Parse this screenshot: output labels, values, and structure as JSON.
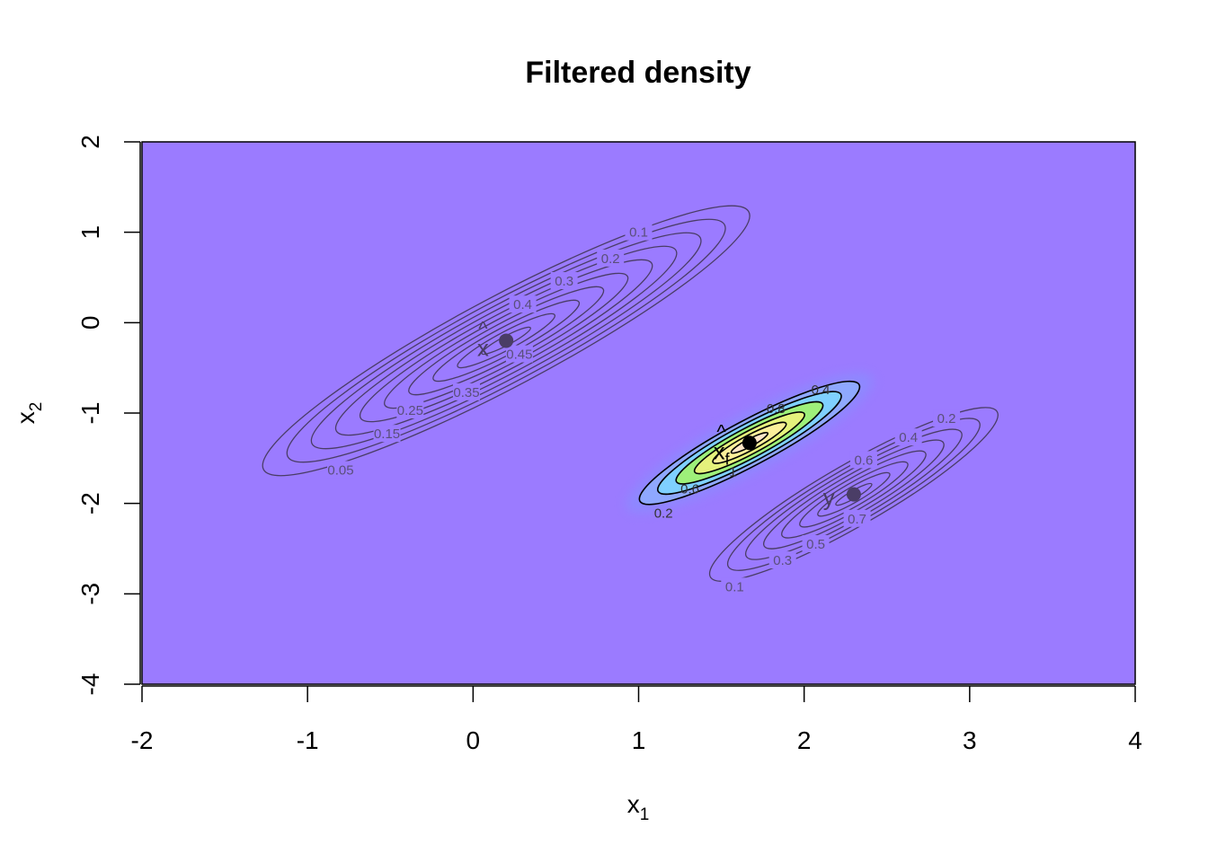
{
  "chart_data": {
    "type": "contour",
    "title": "Filtered density",
    "xlabel_base": "x",
    "xlabel_sub": "1",
    "ylabel_base": "x",
    "ylabel_sub": "2",
    "xlim": [
      -2,
      4
    ],
    "ylim": [
      -4,
      2
    ],
    "xticks": [
      "-2",
      "-1",
      "0",
      "1",
      "2",
      "3",
      "4"
    ],
    "yticks": [
      "-4",
      "-3",
      "-2",
      "-1",
      "0",
      "1",
      "2"
    ],
    "background_color": "#9b7bff",
    "densities": [
      {
        "name": "prior",
        "center": [
          0.2,
          -0.2
        ],
        "semi_axes": [
          1.66,
          0.5
        ],
        "angle_deg": 28,
        "line_color": "#4a3d66",
        "levels": [
          "0.05",
          "0.1",
          "0.15",
          "0.2",
          "0.25",
          "0.3",
          "0.35",
          "0.4",
          "0.45",
          "0.5"
        ],
        "labels": [
          {
            "text": "0.1",
            "x": 1.0,
            "y": 1.0
          },
          {
            "text": "0.2",
            "x": 0.83,
            "y": 0.71
          },
          {
            "text": "0.3",
            "x": 0.55,
            "y": 0.46
          },
          {
            "text": "0.4",
            "x": 0.3,
            "y": 0.2
          },
          {
            "text": "0.45",
            "x": 0.28,
            "y": -0.35
          },
          {
            "text": "0.35",
            "x": -0.04,
            "y": -0.77
          },
          {
            "text": "0.25",
            "x": -0.38,
            "y": -0.97
          },
          {
            "text": "0.15",
            "x": -0.52,
            "y": -1.23
          },
          {
            "text": "0.05",
            "x": -0.8,
            "y": -1.63
          }
        ]
      },
      {
        "name": "observation",
        "center": [
          2.3,
          -1.9
        ],
        "semi_axes": [
          1.0,
          0.34
        ],
        "angle_deg": 30,
        "line_color": "#4a3d66",
        "levels": [
          "0.1",
          "0.2",
          "0.3",
          "0.4",
          "0.5",
          "0.6",
          "0.7",
          "0.8"
        ],
        "labels": [
          {
            "text": "0.2",
            "x": 2.86,
            "y": -1.06
          },
          {
            "text": "0.4",
            "x": 2.63,
            "y": -1.27
          },
          {
            "text": "0.6",
            "x": 2.36,
            "y": -1.52
          },
          {
            "text": "0.7",
            "x": 2.32,
            "y": -2.17
          },
          {
            "text": "0.5",
            "x": 2.07,
            "y": -2.45
          },
          {
            "text": "0.3",
            "x": 1.87,
            "y": -2.63
          },
          {
            "text": "0.1",
            "x": 1.58,
            "y": -2.92
          }
        ]
      },
      {
        "name": "filtered",
        "center": [
          1.67,
          -1.33
        ],
        "semi_axes": [
          0.75,
          0.25
        ],
        "angle_deg": 28,
        "line_color": "#000000",
        "levels": [
          "0.2",
          "0.4",
          "0.6",
          "0.8",
          "1",
          "1.2"
        ],
        "fill_colors": [
          "#8fa8ff",
          "#7fd0ff",
          "#9ef07a",
          "#e5f27c",
          "#fcef9a",
          "#ffe6c8"
        ],
        "labels": [
          {
            "text": "0.4",
            "x": 2.1,
            "y": -0.74
          },
          {
            "text": "0.8",
            "x": 1.83,
            "y": -0.95
          },
          {
            "text": "0.6",
            "x": 1.31,
            "y": -1.84
          },
          {
            "text": "0.2",
            "x": 1.15,
            "y": -2.11
          },
          {
            "text": "1",
            "x": 1.57,
            "y": -1.65
          }
        ]
      }
    ],
    "points": [
      {
        "name": "prior-mean",
        "x": 0.2,
        "y": -0.2,
        "color": "#4a3d66",
        "label": "x",
        "label_accent": "^",
        "label_sub": "",
        "label_x": 0.06,
        "label_y": -0.28
      },
      {
        "name": "observation",
        "x": 2.3,
        "y": -1.9,
        "color": "#4a3d66",
        "label": "y",
        "label_accent": "",
        "label_sub": "",
        "label_x": 2.15,
        "label_y": -1.93
      },
      {
        "name": "filtered-mean",
        "x": 1.67,
        "y": -1.33,
        "color": "#000000",
        "label": "x",
        "label_accent": "^",
        "label_sub": "f",
        "label_x": 1.5,
        "label_y": -1.42
      }
    ]
  }
}
